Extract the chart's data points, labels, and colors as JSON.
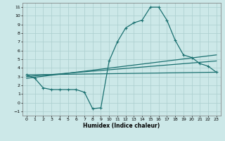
{
  "title": "",
  "xlabel": "Humidex (Indice chaleur)",
  "ylabel": "",
  "background_color": "#cce8e8",
  "grid_color": "#aacece",
  "line_color": "#1a7070",
  "x_ticks": [
    0,
    1,
    2,
    3,
    4,
    5,
    6,
    7,
    8,
    9,
    10,
    11,
    12,
    13,
    14,
    15,
    16,
    17,
    18,
    19,
    20,
    21,
    22,
    23
  ],
  "xlim": [
    -0.5,
    23.5
  ],
  "ylim": [
    -1.5,
    11.5
  ],
  "y_ticks": [
    -1,
    0,
    1,
    2,
    3,
    4,
    5,
    6,
    7,
    8,
    9,
    10,
    11
  ],
  "series1_x": [
    0,
    1,
    2,
    3,
    4,
    5,
    6,
    7,
    8,
    9,
    10,
    11,
    12,
    13,
    14,
    15,
    16,
    17,
    18,
    19,
    20,
    21,
    22,
    23
  ],
  "series1_y": [
    3.2,
    2.8,
    1.7,
    1.5,
    1.5,
    1.5,
    1.5,
    1.2,
    -0.7,
    -0.6,
    4.8,
    7.0,
    8.6,
    9.2,
    9.5,
    11.0,
    11.0,
    9.5,
    7.2,
    5.5,
    5.2,
    4.5,
    4.2,
    3.5
  ],
  "series2_x": [
    0,
    23
  ],
  "series2_y": [
    3.2,
    3.5
  ],
  "series3_x": [
    0,
    23
  ],
  "series3_y": [
    3.0,
    4.8
  ],
  "series4_x": [
    0,
    23
  ],
  "series4_y": [
    2.8,
    5.5
  ]
}
